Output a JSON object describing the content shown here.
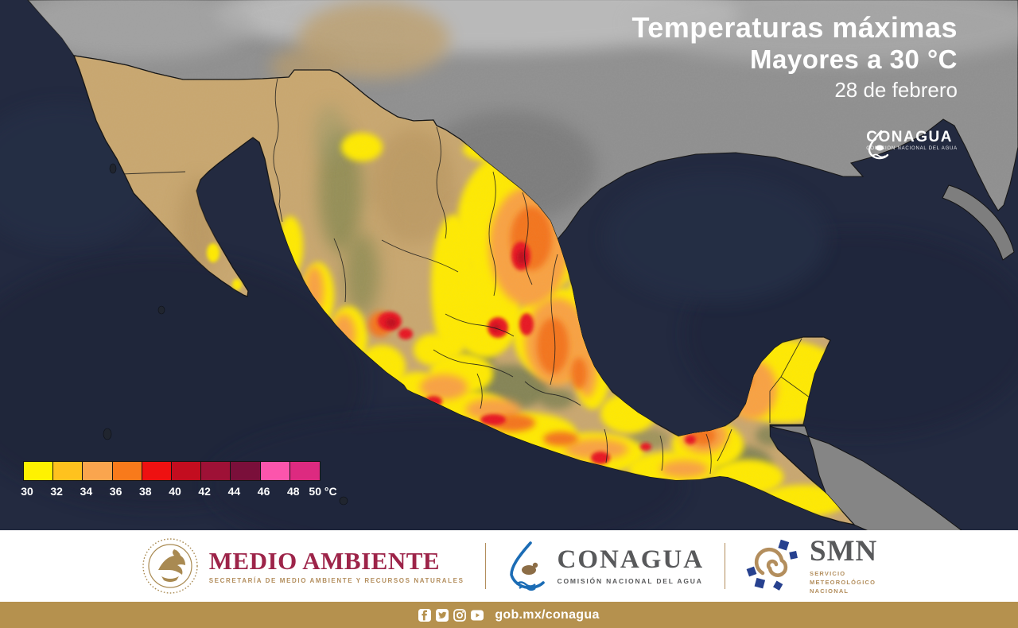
{
  "map": {
    "title_line1": "Temperaturas máximas",
    "title_line2": "Mayores a 30 °C",
    "date": "28 de febrero",
    "watermark": {
      "name": "CONAGUA",
      "subtitle": "COMISIÓN NACIONAL DEL AGUA"
    }
  },
  "legend": {
    "colors": [
      "#FFF200",
      "#FFC21E",
      "#FAA54E",
      "#F87A1B",
      "#EE1111",
      "#C30D1F",
      "#9E1136",
      "#7A0F3A",
      "#FC55AC",
      "#DD2A80"
    ],
    "labels": [
      "30",
      "32",
      "34",
      "36",
      "38",
      "40",
      "42",
      "44",
      "46",
      "48",
      "50 °C"
    ]
  },
  "map_colors": {
    "ocean": "#232A40",
    "us_land": "#8F8F8F",
    "mexico_land": "#C9A76F",
    "overlay_yellow": "#FFEA00",
    "overlay_orange": "#F9A243",
    "overlay_deep_orange": "#F4741C",
    "overlay_red": "#E81922",
    "overlay_dark_red": "#BD0E1C"
  },
  "footer": {
    "medio_ambiente": {
      "title": "MEDIO AMBIENTE",
      "subtitle": "SECRETARÍA DE MEDIO AMBIENTE Y RECURSOS NATURALES"
    },
    "conagua": {
      "title": "CONAGUA",
      "subtitle": "COMISIÓN NACIONAL DEL AGUA"
    },
    "smn": {
      "title": "SMN",
      "sub1": "SERVICIO",
      "sub2": "METEOROLÓGICO",
      "sub3": "NACIONAL"
    }
  },
  "bottombar": {
    "url": "gob.mx/conagua",
    "icons": [
      "facebook-icon",
      "twitter-icon",
      "instagram-icon",
      "youtube-icon"
    ],
    "bar_color": "#B5914E"
  }
}
